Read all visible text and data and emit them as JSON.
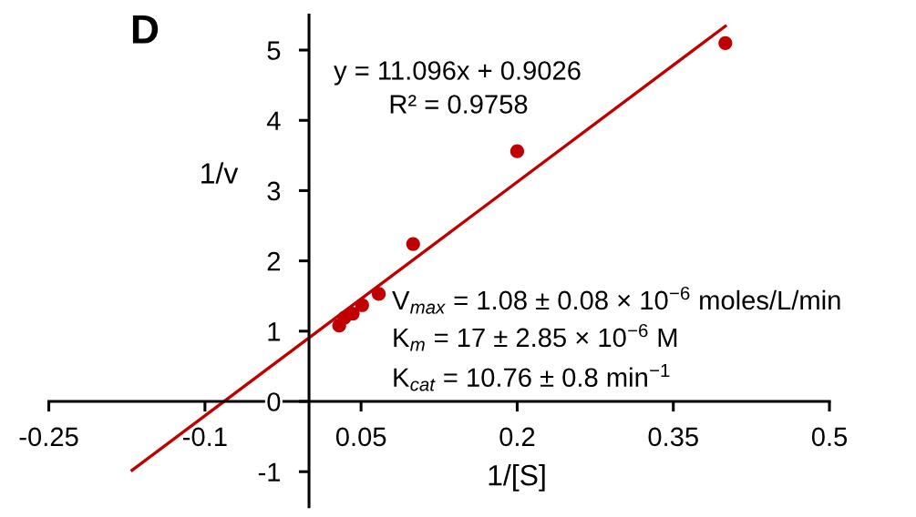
{
  "chart_data": {
    "type": "scatter",
    "title": "D",
    "xlabel": "1/[S]",
    "ylabel": "1/v",
    "annotations": [
      "y = 11.096x + 0.9026",
      "R² = 0.9758",
      "V$_{max}$ = 1.08 ± 0.08 × 10$^{−6}$ moles/L/min",
      "K$_{m}$ = 17 ± 2.85 × 10$^{−6}$ M",
      "K$_{cat}$ = 10.76 ± 0.8 min$^{−1}$"
    ],
    "xlim": [
      -0.25,
      0.5
    ],
    "xticks": [
      -0.25,
      -0.1,
      0.05,
      0.2,
      0.35,
      0.5
    ],
    "ylim": [
      -1.5,
      5.5
    ],
    "yticks": [
      -1,
      0,
      1,
      2,
      3,
      4,
      5
    ],
    "series": [
      {
        "marker": "circle",
        "color": "#c00000",
        "x": [
          0.029,
          0.034,
          0.042,
          0.051,
          0.067,
          0.1,
          0.2,
          0.4
        ],
        "values": [
          1.08,
          1.19,
          1.25,
          1.37,
          1.53,
          2.24,
          3.56,
          5.1
        ]
      },
      {
        "type": "line",
        "line_style": "solid",
        "color": "#c00000",
        "x": [
          -0.17,
          0.4
        ],
        "values": [
          -0.98,
          5.34
        ]
      }
    ]
  }
}
